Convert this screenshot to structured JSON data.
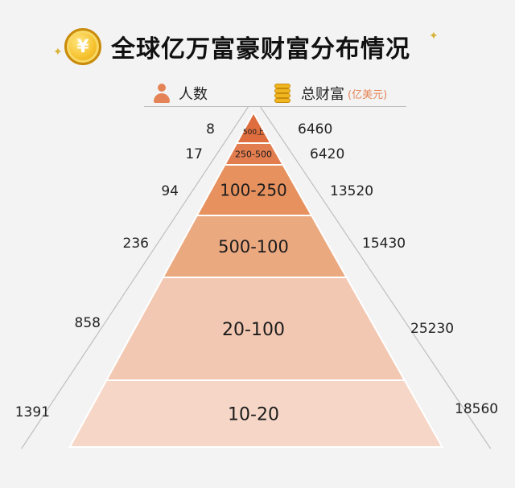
{
  "header": {
    "title": "全球亿万富豪财富分布情况",
    "coin_symbol": "¥",
    "sparkle": "✦"
  },
  "legend": {
    "people_label": "人数",
    "wealth_label": "总财富",
    "wealth_unit": "(亿美元)"
  },
  "colors": {
    "background": "#f3f3f4",
    "tier_colors": [
      "#df6e3f",
      "#e27d4f",
      "#e7915f",
      "#eba980",
      "#f2c8b2",
      "#f6d7c7"
    ],
    "accent": "#e48456"
  },
  "chart_data": {
    "type": "pyramid",
    "tiers": [
      {
        "label": "500上",
        "people": 8,
        "wealth": 6460
      },
      {
        "label": "250-500",
        "people": 17,
        "wealth": 6420
      },
      {
        "label": "100-250",
        "people": 94,
        "wealth": 13520
      },
      {
        "label": "500-100",
        "people": 236,
        "wealth": 15430
      },
      {
        "label": "20-100",
        "people": 858,
        "wealth": 25230
      },
      {
        "label": "10-20",
        "people": 1391,
        "wealth": 18560
      }
    ]
  }
}
